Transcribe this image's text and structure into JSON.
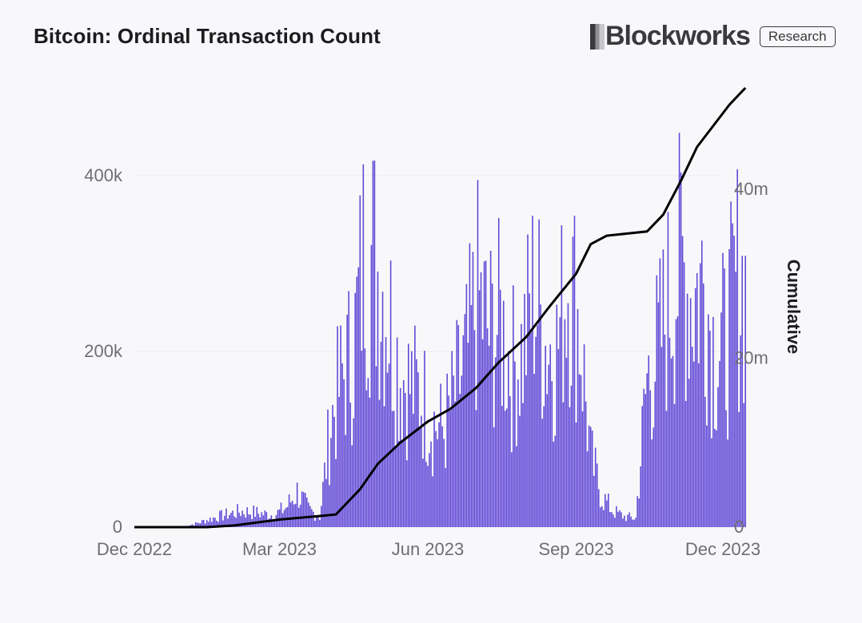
{
  "header": {
    "title": "Bitcoin: Ordinal Transaction Count",
    "brand": "Blockworks",
    "badge": "Research"
  },
  "chart_data": {
    "type": "bar",
    "title": "Bitcoin: Ordinal Transaction Count",
    "x_tick_labels": [
      "Dec 2022",
      "Mar 2023",
      "Jun 2023",
      "Sep 2023",
      "Dec 2023"
    ],
    "x_range": [
      "2022-12-01",
      "2023-12-01"
    ],
    "y_left": {
      "ticks": [
        "0",
        "200k",
        "400k"
      ],
      "ylim": [
        0,
        500000
      ]
    },
    "y_right": {
      "label": "Cumulative",
      "ticks": [
        "0",
        "20m",
        "40m"
      ],
      "ylim": [
        0,
        52000000
      ]
    },
    "grid": true,
    "colors": {
      "bars": "#6047d6",
      "line": "#000000",
      "grid": "#ececf0"
    },
    "series": [
      {
        "type": "bar",
        "axis": "left",
        "weekly_points": [
          [
            "2023-01-01",
            1000
          ],
          [
            "2023-01-08",
            4000
          ],
          [
            "2023-01-15",
            8000
          ],
          [
            "2023-01-22",
            12000
          ],
          [
            "2023-01-29",
            15000
          ],
          [
            "2023-02-05",
            18000
          ],
          [
            "2023-02-12",
            17000
          ],
          [
            "2023-02-19",
            15000
          ],
          [
            "2023-02-26",
            14000
          ],
          [
            "2023-03-05",
            22000
          ],
          [
            "2023-03-12",
            40000
          ],
          [
            "2023-03-19",
            20000
          ],
          [
            "2023-03-26",
            12000
          ],
          [
            "2023-04-02",
            120000
          ],
          [
            "2023-04-09",
            170000
          ],
          [
            "2023-04-16",
            200000
          ],
          [
            "2023-04-23",
            320000
          ],
          [
            "2023-04-30",
            300000
          ],
          [
            "2023-05-07",
            250000
          ],
          [
            "2023-05-14",
            180000
          ],
          [
            "2023-05-21",
            160000
          ],
          [
            "2023-05-28",
            150000
          ],
          [
            "2023-06-04",
            120000
          ],
          [
            "2023-06-11",
            110000
          ],
          [
            "2023-06-18",
            150000
          ],
          [
            "2023-06-25",
            190000
          ],
          [
            "2023-07-02",
            260000
          ],
          [
            "2023-07-09",
            220000
          ],
          [
            "2023-07-16",
            230000
          ],
          [
            "2023-07-23",
            180000
          ],
          [
            "2023-07-30",
            200000
          ],
          [
            "2023-08-06",
            270000
          ],
          [
            "2023-08-13",
            210000
          ],
          [
            "2023-08-20",
            200000
          ],
          [
            "2023-08-27",
            290000
          ],
          [
            "2023-09-03",
            230000
          ],
          [
            "2023-09-10",
            80000
          ],
          [
            "2023-09-17",
            35000
          ],
          [
            "2023-09-24",
            18000
          ],
          [
            "2023-10-01",
            12000
          ],
          [
            "2023-10-08",
            10000
          ],
          [
            "2023-10-15",
            170000
          ],
          [
            "2023-10-22",
            200000
          ],
          [
            "2023-10-29",
            260000
          ],
          [
            "2023-11-05",
            300000
          ],
          [
            "2023-11-12",
            260000
          ],
          [
            "2023-11-19",
            280000
          ],
          [
            "2023-11-26",
            200000
          ],
          [
            "2023-12-03",
            210000
          ],
          [
            "2023-12-10",
            280000
          ],
          [
            "2023-12-15",
            270000
          ]
        ]
      },
      {
        "type": "line",
        "name": "Cumulative",
        "axis": "right",
        "points": [
          [
            "2022-12-01",
            0
          ],
          [
            "2023-01-15",
            0
          ],
          [
            "2023-02-01",
            200000
          ],
          [
            "2023-03-01",
            900000
          ],
          [
            "2023-03-25",
            1300000
          ],
          [
            "2023-04-05",
            1500000
          ],
          [
            "2023-04-10",
            2500000
          ],
          [
            "2023-04-20",
            4500000
          ],
          [
            "2023-05-01",
            7500000
          ],
          [
            "2023-05-15",
            10000000
          ],
          [
            "2023-06-01",
            12500000
          ],
          [
            "2023-06-15",
            14000000
          ],
          [
            "2023-07-01",
            16500000
          ],
          [
            "2023-07-15",
            19500000
          ],
          [
            "2023-08-01",
            22500000
          ],
          [
            "2023-08-15",
            26000000
          ],
          [
            "2023-09-01",
            30000000
          ],
          [
            "2023-09-10",
            33500000
          ],
          [
            "2023-09-20",
            34500000
          ],
          [
            "2023-10-15",
            35000000
          ],
          [
            "2023-10-25",
            37000000
          ],
          [
            "2023-11-05",
            41000000
          ],
          [
            "2023-11-15",
            45000000
          ],
          [
            "2023-11-25",
            47500000
          ],
          [
            "2023-12-05",
            50000000
          ],
          [
            "2023-12-15",
            52000000
          ]
        ]
      }
    ]
  }
}
